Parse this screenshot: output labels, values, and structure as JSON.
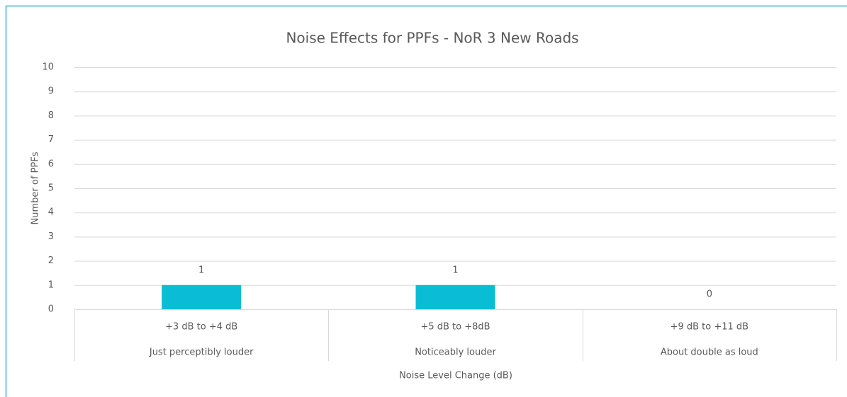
{
  "chart_data": {
    "type": "bar",
    "title": "Noise Effects for PPFs - NoR 3 New Roads",
    "categories": [
      "+3 dB to +4 dB",
      "+5 dB to +8dB",
      "+9 dB to +11 dB"
    ],
    "category_descriptions": [
      "Just perceptibly louder",
      "Noticeably louder",
      "About double as loud"
    ],
    "values": [
      1,
      1,
      0
    ],
    "color": "#0bbcd6",
    "x_label": "Noise Level Change  (dB)",
    "y_label": "Number of PPFs",
    "ylim": [
      0,
      10
    ],
    "yticks": [
      0,
      1,
      2,
      3,
      4,
      5,
      6,
      7,
      8,
      9,
      10
    ],
    "grid": true
  }
}
